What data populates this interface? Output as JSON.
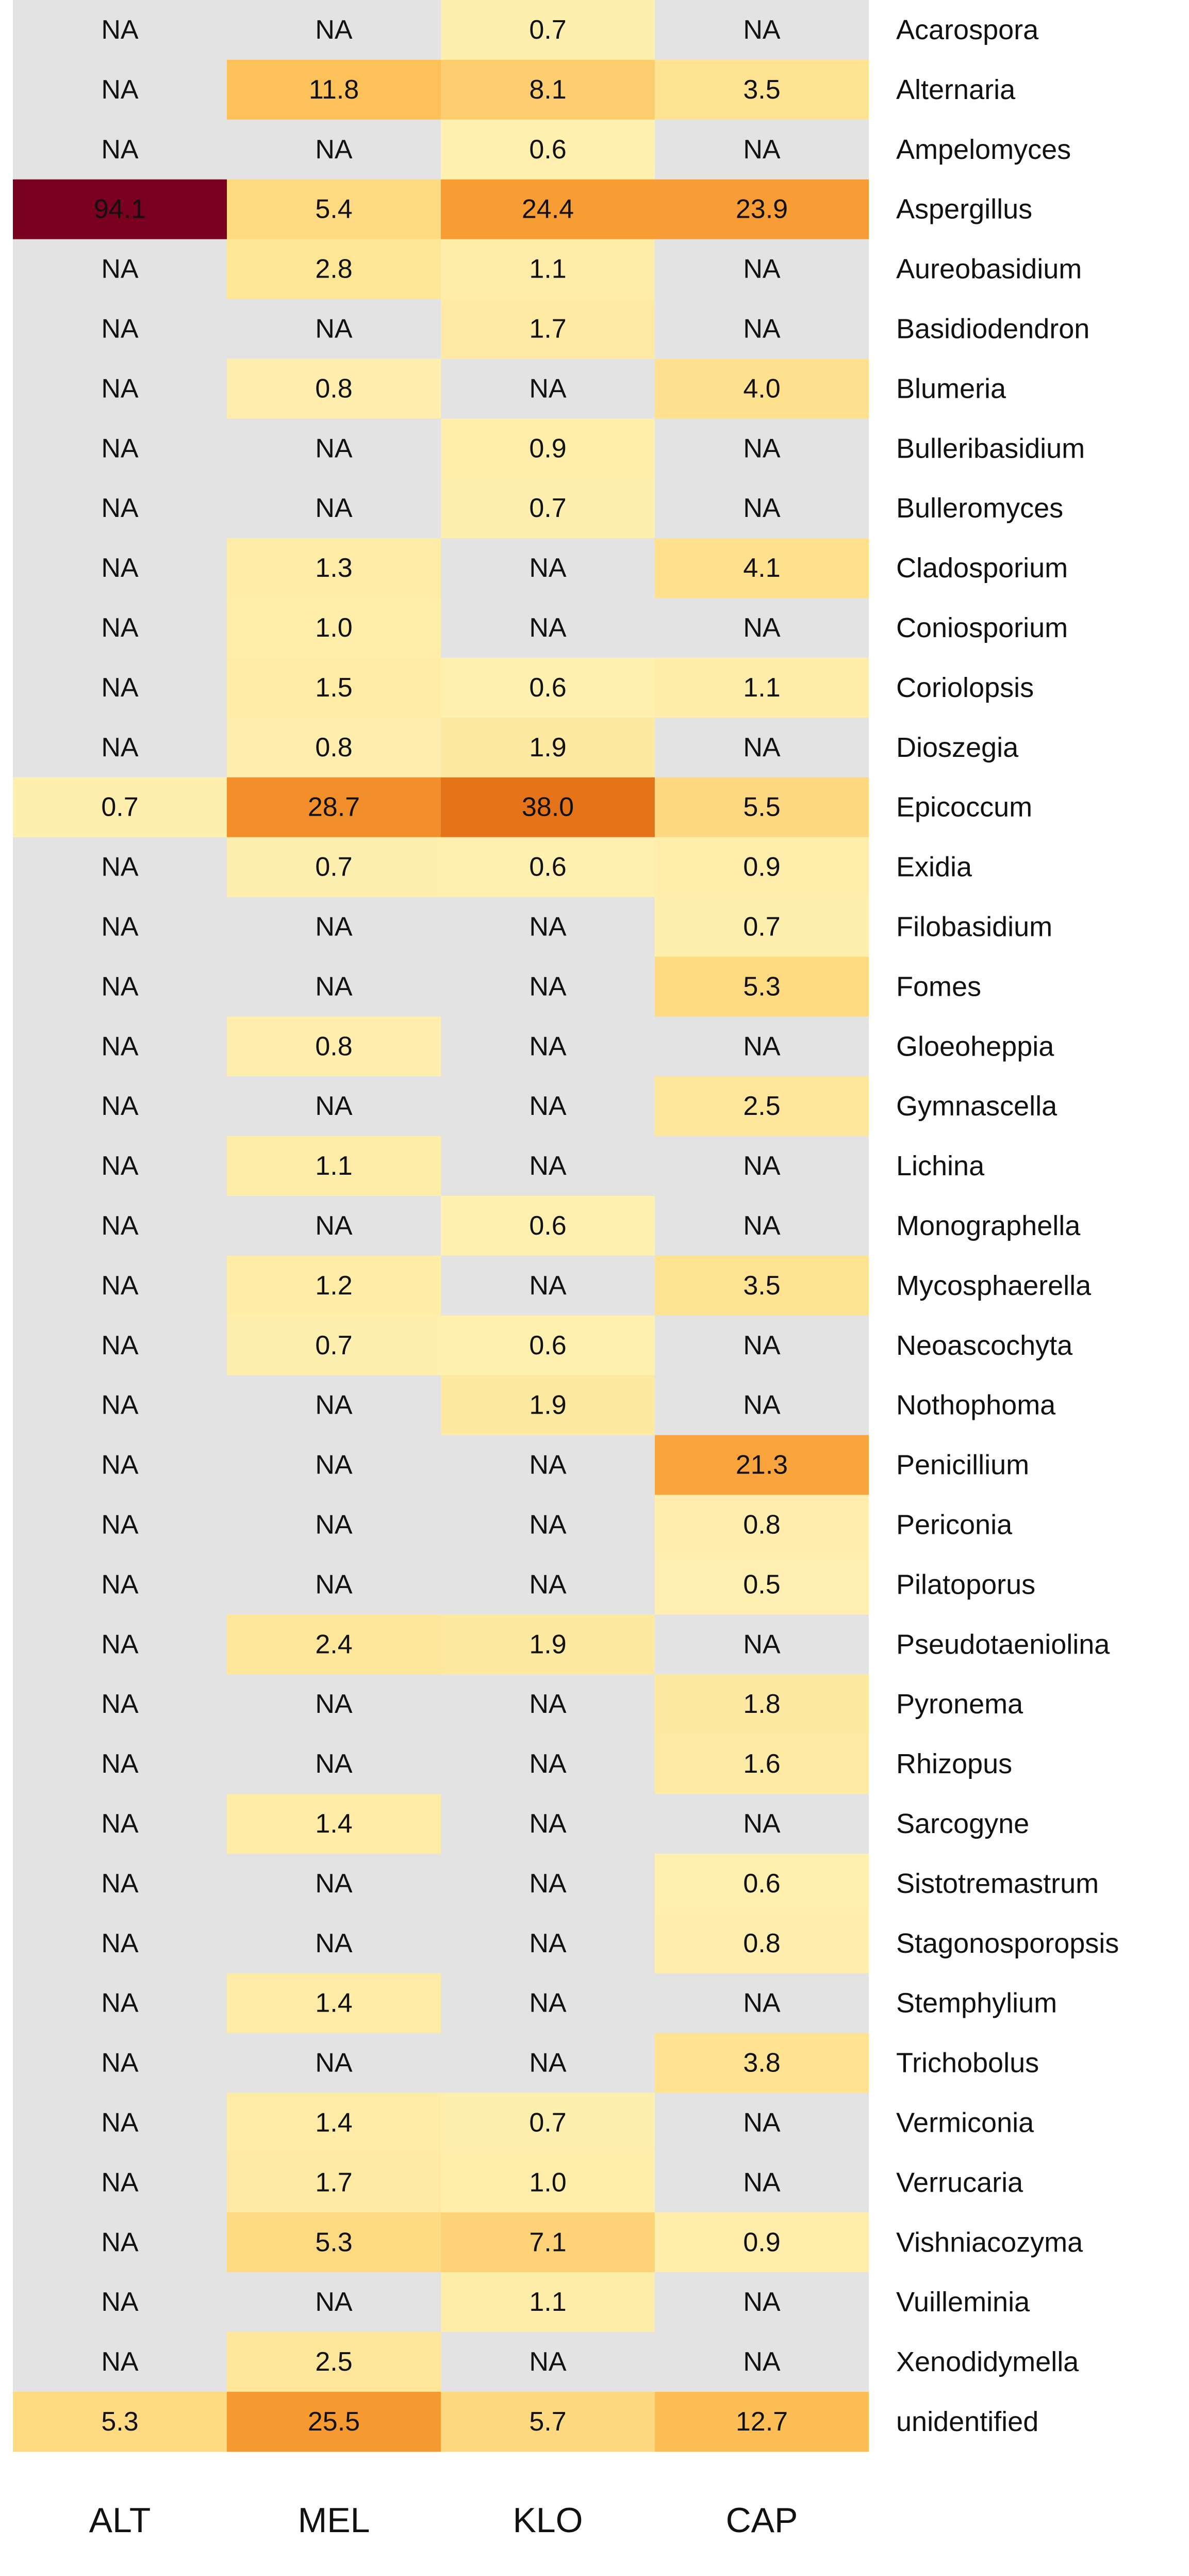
{
  "chart_data": {
    "type": "heatmap",
    "columns": [
      "ALT",
      "MEL",
      "KLO",
      "CAP"
    ],
    "na_label": "NA",
    "na_color": "#e3e3e3",
    "color_scale": [
      "#fff7c2",
      "#fee391",
      "#fdbe55",
      "#f7962e",
      "#d95f0e",
      "#8c0a1e",
      "#7a0020"
    ],
    "value_range": [
      0,
      94.1
    ],
    "rows": [
      {
        "label": "Acarospora",
        "values": [
          null,
          null,
          0.7,
          null
        ]
      },
      {
        "label": "Alternaria",
        "values": [
          null,
          11.8,
          8.1,
          3.5
        ]
      },
      {
        "label": "Ampelomyces",
        "values": [
          null,
          null,
          0.6,
          null
        ]
      },
      {
        "label": "Aspergillus",
        "values": [
          94.1,
          5.4,
          24.4,
          23.9
        ]
      },
      {
        "label": "Aureobasidium",
        "values": [
          null,
          2.8,
          1.1,
          null
        ]
      },
      {
        "label": "Basidiodendron",
        "values": [
          null,
          null,
          1.7,
          null
        ]
      },
      {
        "label": "Blumeria",
        "values": [
          null,
          0.8,
          null,
          4.0
        ]
      },
      {
        "label": "Bulleribasidium",
        "values": [
          null,
          null,
          0.9,
          null
        ]
      },
      {
        "label": "Bulleromyces",
        "values": [
          null,
          null,
          0.7,
          null
        ]
      },
      {
        "label": "Cladosporium",
        "values": [
          null,
          1.3,
          null,
          4.1
        ]
      },
      {
        "label": "Coniosporium",
        "values": [
          null,
          1.0,
          null,
          null
        ]
      },
      {
        "label": "Coriolopsis",
        "values": [
          null,
          1.5,
          0.6,
          1.1
        ]
      },
      {
        "label": "Dioszegia",
        "values": [
          null,
          0.8,
          1.9,
          null
        ]
      },
      {
        "label": "Epicoccum",
        "values": [
          0.7,
          28.7,
          38.0,
          5.5
        ]
      },
      {
        "label": "Exidia",
        "values": [
          null,
          0.7,
          0.6,
          0.9
        ]
      },
      {
        "label": "Filobasidium",
        "values": [
          null,
          null,
          null,
          0.7
        ]
      },
      {
        "label": "Fomes",
        "values": [
          null,
          null,
          null,
          5.3
        ]
      },
      {
        "label": "Gloeoheppia",
        "values": [
          null,
          0.8,
          null,
          null
        ]
      },
      {
        "label": "Gymnascella",
        "values": [
          null,
          null,
          null,
          2.5
        ]
      },
      {
        "label": "Lichina",
        "values": [
          null,
          1.1,
          null,
          null
        ]
      },
      {
        "label": "Monographella",
        "values": [
          null,
          null,
          0.6,
          null
        ]
      },
      {
        "label": "Mycosphaerella",
        "values": [
          null,
          1.2,
          null,
          3.5
        ]
      },
      {
        "label": "Neoascochyta",
        "values": [
          null,
          0.7,
          0.6,
          null
        ]
      },
      {
        "label": "Nothophoma",
        "values": [
          null,
          null,
          1.9,
          null
        ]
      },
      {
        "label": "Penicillium",
        "values": [
          null,
          null,
          null,
          21.3
        ]
      },
      {
        "label": "Periconia",
        "values": [
          null,
          null,
          null,
          0.8
        ]
      },
      {
        "label": "Pilatoporus",
        "values": [
          null,
          null,
          null,
          0.5
        ]
      },
      {
        "label": "Pseudotaeniolina",
        "values": [
          null,
          2.4,
          1.9,
          null
        ]
      },
      {
        "label": "Pyronema",
        "values": [
          null,
          null,
          null,
          1.8
        ]
      },
      {
        "label": "Rhizopus",
        "values": [
          null,
          null,
          null,
          1.6
        ]
      },
      {
        "label": "Sarcogyne",
        "values": [
          null,
          1.4,
          null,
          null
        ]
      },
      {
        "label": "Sistotremastrum",
        "values": [
          null,
          null,
          null,
          0.6
        ]
      },
      {
        "label": "Stagonosporopsis",
        "values": [
          null,
          null,
          null,
          0.8
        ]
      },
      {
        "label": "Stemphylium",
        "values": [
          null,
          1.4,
          null,
          null
        ]
      },
      {
        "label": "Trichobolus",
        "values": [
          null,
          null,
          null,
          3.8
        ]
      },
      {
        "label": "Vermiconia",
        "values": [
          null,
          1.4,
          0.7,
          null
        ]
      },
      {
        "label": "Verrucaria",
        "values": [
          null,
          1.7,
          1.0,
          null
        ]
      },
      {
        "label": "Vishniacozyma",
        "values": [
          null,
          5.3,
          7.1,
          0.9
        ]
      },
      {
        "label": "Vuilleminia",
        "values": [
          null,
          null,
          1.1,
          null
        ]
      },
      {
        "label": "Xenodidymella",
        "values": [
          null,
          2.5,
          null,
          null
        ]
      },
      {
        "label": "unidentified",
        "values": [
          5.3,
          25.5,
          5.7,
          12.7
        ]
      }
    ]
  }
}
